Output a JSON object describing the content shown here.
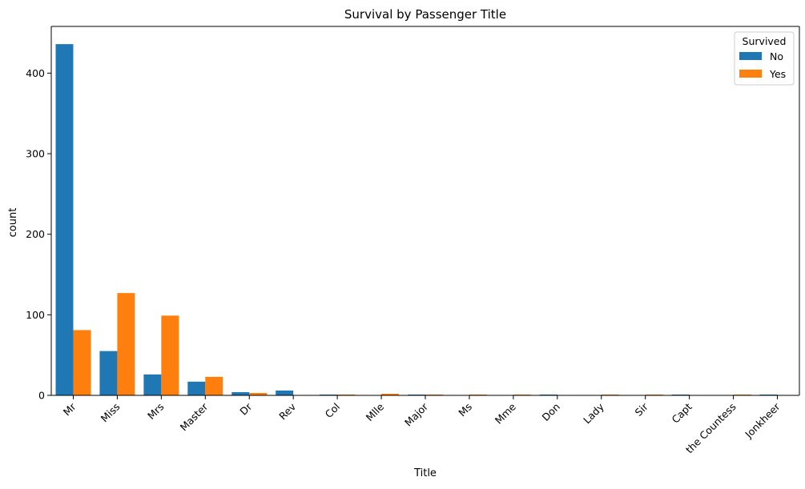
{
  "chart_data": {
    "type": "bar",
    "title": "Survival by Passenger Title",
    "xlabel": "Title",
    "ylabel": "count",
    "ylim": [
      0,
      458
    ],
    "yticks": [
      0,
      100,
      200,
      300,
      400
    ],
    "categories": [
      "Mr",
      "Miss",
      "Mrs",
      "Master",
      "Dr",
      "Rev",
      "Col",
      "Mlle",
      "Major",
      "Ms",
      "Mme",
      "Don",
      "Lady",
      "Sir",
      "Capt",
      "the Countess",
      "Jonkheer"
    ],
    "series": [
      {
        "name": "No",
        "color": "#1f77b4",
        "values": [
          436,
          55,
          26,
          17,
          4,
          6,
          1,
          0,
          1,
          0,
          0,
          1,
          0,
          0,
          1,
          0,
          1
        ]
      },
      {
        "name": "Yes",
        "color": "#ff7f0e",
        "values": [
          81,
          127,
          99,
          23,
          3,
          0,
          1,
          2,
          1,
          1,
          1,
          0,
          1,
          1,
          0,
          1,
          0
        ]
      }
    ],
    "legend": {
      "title": "Survived",
      "position": "top-right"
    },
    "grid": false,
    "xtick_rotation": 45
  }
}
